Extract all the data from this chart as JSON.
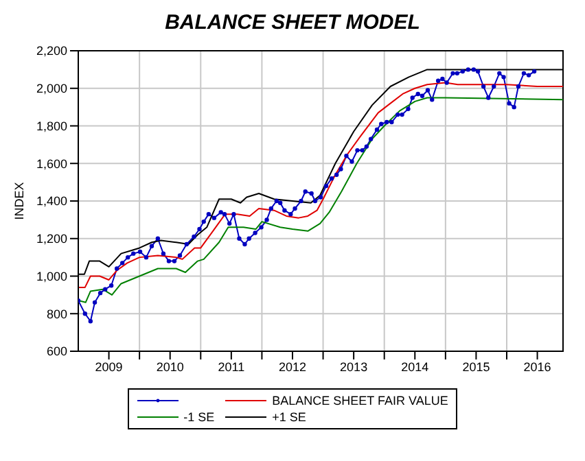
{
  "chart_data": {
    "type": "line",
    "title": "BALANCE SHEET MODEL",
    "ylabel": "INDEX",
    "xlim": [
      2009,
      2016.92
    ],
    "xticks": [
      {
        "value": 2010,
        "label": null
      },
      {
        "value": 2011,
        "label": null
      },
      {
        "value": 2012,
        "label": null
      },
      {
        "value": 2013,
        "label": null
      },
      {
        "value": 2014,
        "label": null
      },
      {
        "value": 2015,
        "label": null
      },
      {
        "value": 2016,
        "label": null
      },
      {
        "value": 2009.5,
        "label": "2009"
      },
      {
        "value": 2010.5,
        "label": "2010"
      },
      {
        "value": 2011.5,
        "label": "2011"
      },
      {
        "value": 2012.5,
        "label": "2012"
      },
      {
        "value": 2013.5,
        "label": "2013"
      },
      {
        "value": 2014.5,
        "label": "2014"
      },
      {
        "value": 2015.5,
        "label": "2015"
      },
      {
        "value": 2016.5,
        "label": "2016"
      }
    ],
    "ylim": [
      600,
      2200
    ],
    "yticks": [
      {
        "value": 600,
        "label": "600"
      },
      {
        "value": 800,
        "label": "800"
      },
      {
        "value": 1000,
        "label": "1,000"
      },
      {
        "value": 1200,
        "label": "1,200"
      },
      {
        "value": 1400,
        "label": "1,400"
      },
      {
        "value": 1600,
        "label": "1,600"
      },
      {
        "value": 1800,
        "label": "1,800"
      },
      {
        "value": 2000,
        "label": "2,000"
      },
      {
        "value": 2200,
        "label": "2,200"
      }
    ],
    "grid": true,
    "legend": "bottom",
    "series": [
      {
        "color": "#0000c0",
        "marker": "circle",
        "x": [
          2009.0,
          2009.11,
          2009.2,
          2009.27,
          2009.36,
          2009.44,
          2009.54,
          2009.63,
          2009.72,
          2009.81,
          2009.9,
          2010.01,
          2010.11,
          2010.2,
          2010.3,
          2010.39,
          2010.48,
          2010.57,
          2010.66,
          2010.77,
          2010.89,
          2010.98,
          2011.05,
          2011.13,
          2011.22,
          2011.33,
          2011.39,
          2011.47,
          2011.54,
          2011.63,
          2011.72,
          2011.79,
          2011.89,
          2011.99,
          2012.08,
          2012.15,
          2012.24,
          2012.3,
          2012.37,
          2012.47,
          2012.54,
          2012.64,
          2012.71,
          2012.81,
          2012.87,
          2012.96,
          2013.05,
          2013.14,
          2013.22,
          2013.29,
          2013.38,
          2013.47,
          2013.56,
          2013.64,
          2013.71,
          2013.78,
          2013.88,
          2013.95,
          2014.04,
          2014.12,
          2014.22,
          2014.29,
          2014.39,
          2014.46,
          2014.55,
          2014.62,
          2014.71,
          2014.78,
          2014.88,
          2014.95,
          2015.02,
          2015.12,
          2015.19,
          2015.28,
          2015.37,
          2015.46,
          2015.53,
          2015.62,
          2015.7,
          2015.79,
          2015.88,
          2015.95,
          2016.04,
          2016.12,
          2016.19,
          2016.28,
          2016.36,
          2016.45
        ],
        "values": [
          870,
          800,
          760,
          860,
          910,
          930,
          950,
          1040,
          1070,
          1100,
          1120,
          1130,
          1100,
          1160,
          1200,
          1120,
          1080,
          1080,
          1110,
          1170,
          1210,
          1250,
          1290,
          1330,
          1310,
          1340,
          1330,
          1280,
          1330,
          1200,
          1170,
          1200,
          1230,
          1260,
          1300,
          1360,
          1400,
          1390,
          1350,
          1330,
          1360,
          1400,
          1450,
          1440,
          1400,
          1420,
          1480,
          1520,
          1540,
          1570,
          1640,
          1610,
          1670,
          1670,
          1690,
          1730,
          1780,
          1810,
          1820,
          1820,
          1860,
          1860,
          1890,
          1950,
          1970,
          1960,
          1990,
          1940,
          2040,
          2050,
          2030,
          2080,
          2080,
          2090,
          2100,
          2100,
          2090,
          2010,
          1950,
          2010,
          2080,
          2060,
          1920,
          1900,
          2010,
          2080,
          2070,
          2090
        ]
      },
      {
        "name": "BALANCE SHEET FAIR VALUE",
        "color": "#e00000",
        "x": [
          2009.0,
          2009.11,
          2009.2,
          2009.35,
          2009.5,
          2009.63,
          2009.8,
          2010.0,
          2010.3,
          2010.6,
          2010.7,
          2010.9,
          2011.0,
          2011.2,
          2011.4,
          2011.6,
          2011.8,
          2011.95,
          2012.2,
          2012.4,
          2012.6,
          2012.75,
          2012.9,
          2013.0,
          2013.2,
          2013.4,
          2013.6,
          2013.9,
          2014.1,
          2014.3,
          2014.5,
          2014.7,
          2015.0,
          2015.2,
          2016.0,
          2016.5,
          2016.92
        ],
        "values": [
          940,
          940,
          1000,
          1000,
          980,
          1030,
          1070,
          1100,
          1110,
          1100,
          1090,
          1150,
          1150,
          1240,
          1330,
          1330,
          1320,
          1360,
          1350,
          1320,
          1310,
          1320,
          1350,
          1410,
          1540,
          1650,
          1740,
          1870,
          1920,
          1970,
          2000,
          2020,
          2030,
          2020,
          2020,
          2010,
          2010
        ]
      },
      {
        "name": "-1 SE",
        "color": "#008000",
        "x": [
          2009.0,
          2009.12,
          2009.2,
          2009.4,
          2009.55,
          2009.7,
          2010.0,
          2010.3,
          2010.6,
          2010.75,
          2010.95,
          2011.05,
          2011.3,
          2011.45,
          2011.7,
          2011.9,
          2012.0,
          2012.3,
          2012.5,
          2012.75,
          2012.95,
          2013.1,
          2013.3,
          2013.55,
          2013.8,
          2014.0,
          2014.25,
          2014.5,
          2014.7,
          2015.0,
          2016.92
        ],
        "values": [
          870,
          860,
          920,
          930,
          900,
          960,
          1000,
          1040,
          1040,
          1020,
          1080,
          1090,
          1180,
          1260,
          1260,
          1250,
          1290,
          1260,
          1250,
          1240,
          1280,
          1340,
          1450,
          1600,
          1730,
          1800,
          1880,
          1930,
          1950,
          1950,
          1940
        ]
      },
      {
        "name": "+1 SE",
        "color": "#000000",
        "x": [
          2009.0,
          2009.1,
          2009.18,
          2009.35,
          2009.5,
          2009.7,
          2009.9,
          2010.0,
          2010.2,
          2010.35,
          2010.6,
          2010.8,
          2010.95,
          2011.1,
          2011.3,
          2011.5,
          2011.65,
          2011.75,
          2011.95,
          2012.2,
          2012.5,
          2012.8,
          2012.95,
          2013.2,
          2013.5,
          2013.8,
          2014.1,
          2014.4,
          2014.7,
          2015.0,
          2016.92
        ],
        "values": [
          1010,
          1010,
          1080,
          1080,
          1050,
          1120,
          1140,
          1150,
          1180,
          1190,
          1180,
          1170,
          1220,
          1260,
          1410,
          1410,
          1390,
          1420,
          1440,
          1410,
          1400,
          1390,
          1430,
          1600,
          1770,
          1910,
          2010,
          2060,
          2100,
          2100,
          2100
        ]
      }
    ]
  }
}
